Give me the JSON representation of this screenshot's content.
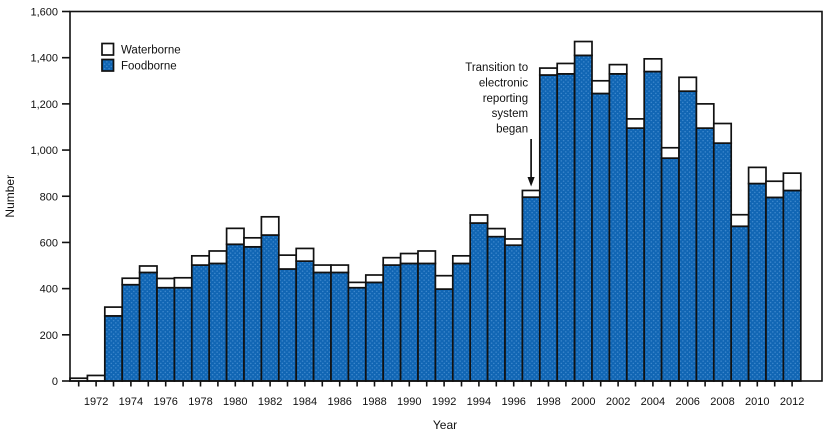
{
  "figure": {
    "background": "#ffffff",
    "axis_color": "#111111",
    "text_color": "#111111",
    "bar_fill": "#1166b4",
    "bar_dot": "#3d87cc",
    "waterborne_fill": "#ffffff"
  },
  "chart_data": {
    "type": "bar",
    "stacked": true,
    "title": "",
    "xlabel": "Year",
    "ylabel": "Number",
    "ylim": [
      0,
      1600
    ],
    "ytick_step": 200,
    "xtick_labeled_years_every": 2,
    "grid": false,
    "legend_position": "top-left",
    "categories": [
      1971,
      1972,
      1973,
      1974,
      1975,
      1976,
      1977,
      1978,
      1979,
      1980,
      1981,
      1982,
      1983,
      1984,
      1985,
      1986,
      1987,
      1988,
      1989,
      1990,
      1991,
      1992,
      1993,
      1994,
      1995,
      1996,
      1997,
      1998,
      1999,
      2000,
      2001,
      2002,
      2003,
      2004,
      2005,
      2006,
      2007,
      2008,
      2009,
      2010,
      2011,
      2012
    ],
    "series": [
      {
        "name": "Foodborne",
        "color": "#1166b4",
        "values": [
          0,
          0,
          282,
          417,
          470,
          404,
          404,
          502,
          509,
          592,
          581,
          632,
          485,
          519,
          470,
          470,
          404,
          427,
          502,
          509,
          509,
          398,
          509,
          684,
          625,
          588,
          796,
          1325,
          1330,
          1410,
          1245,
          1330,
          1095,
          1340,
          965,
          1255,
          1095,
          1030,
          670,
          855,
          795,
          825
        ]
      },
      {
        "name": "Waterborne",
        "color": "#ffffff",
        "values": [
          12,
          24,
          38,
          28,
          28,
          40,
          43,
          40,
          54,
          69,
          39,
          79,
          60,
          55,
          32,
          32,
          23,
          32,
          32,
          43,
          54,
          58,
          33,
          35,
          35,
          27,
          29,
          30,
          45,
          60,
          55,
          40,
          40,
          55,
          45,
          60,
          105,
          85,
          50,
          70,
          70,
          75
        ]
      }
    ],
    "legend_entries": [
      "Waterborne",
      "Foodborne"
    ],
    "annotation": {
      "lines": [
        "Transition to",
        "electronic",
        "reporting",
        "system",
        "began"
      ],
      "arrow_points_to_year": 1997
    }
  }
}
